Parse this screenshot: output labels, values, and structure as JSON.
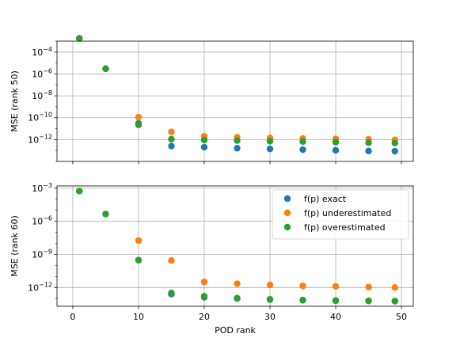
{
  "chart_data": [
    {
      "type": "scatter",
      "xlabel": "",
      "ylabel": "MSE (rank 50)",
      "yscale": "log",
      "xlim": [
        -2.4,
        51.8
      ],
      "ylim": [
        1e-14,
        0.001
      ],
      "grid": true,
      "legend": null,
      "x_ticks": [
        0,
        10,
        20,
        30,
        40,
        50
      ],
      "y_ticks": [
        {
          "value": 1e-12,
          "base": "10",
          "exp": "−12"
        },
        {
          "value": 1e-10,
          "base": "10",
          "exp": "−10"
        },
        {
          "value": 1e-08,
          "base": "10",
          "exp": "−8"
        },
        {
          "value": 1e-06,
          "base": "10",
          "exp": "−6"
        },
        {
          "value": 0.0001,
          "base": "10",
          "exp": "−4"
        }
      ],
      "series": [
        {
          "name": "f(p) exact",
          "color": "#1f77b4",
          "x": [
            1,
            5,
            10,
            15,
            20,
            25,
            30,
            35,
            40,
            45,
            49
          ],
          "y": [
            0.0018,
            3e-06,
            3e-11,
            2.5e-13,
            2e-13,
            1.6e-13,
            1.4e-13,
            1.2e-13,
            1.05e-13,
            9e-14,
            8.5e-14
          ]
        },
        {
          "name": "f(p) underestimated",
          "color": "#ff7f0e",
          "x": [
            1,
            5,
            10,
            15,
            20,
            25,
            30,
            35,
            40,
            45,
            49
          ],
          "y": [
            0.0018,
            3e-06,
            1.1e-10,
            5e-12,
            2e-12,
            1.6e-12,
            1.4e-12,
            1.25e-12,
            1.15e-12,
            1.05e-12,
            9.5e-13
          ]
        },
        {
          "name": "f(p) overestimated",
          "color": "#2ca02c",
          "x": [
            1,
            5,
            10,
            15,
            20,
            25,
            30,
            35,
            40,
            45,
            49
          ],
          "y": [
            0.0018,
            3e-06,
            2.2e-11,
            1.1e-12,
            9e-13,
            8e-13,
            7e-13,
            6.5e-13,
            5.8e-13,
            5.2e-13,
            4.8e-13
          ]
        }
      ]
    },
    {
      "type": "scatter",
      "xlabel": "POD rank",
      "ylabel": "MSE (rank 60)",
      "yscale": "log",
      "xlim": [
        -2.4,
        51.8
      ],
      "ylim": [
        2e-14,
        0.0016
      ],
      "grid": true,
      "legend": "top-right",
      "x_ticks": [
        0,
        10,
        20,
        30,
        40,
        50
      ],
      "y_ticks": [
        {
          "value": 1e-12,
          "base": "10",
          "exp": "−12"
        },
        {
          "value": 1e-09,
          "base": "10",
          "exp": "−9"
        },
        {
          "value": 1e-06,
          "base": "10",
          "exp": "−6"
        },
        {
          "value": 0.001,
          "base": "10",
          "exp": "−3"
        }
      ],
      "series": [
        {
          "name": "f(p) exact",
          "color": "#1f77b4",
          "x": [
            1,
            5,
            10,
            15,
            20,
            25,
            30,
            35,
            40,
            45,
            49
          ],
          "y": [
            0.00055,
            4.5e-06,
            3e-10,
            2.5e-13,
            1.3e-13,
            1e-13,
            8e-14,
            7e-14,
            6.3e-14,
            6e-14,
            5.7e-14
          ]
        },
        {
          "name": "f(p) underestimated",
          "color": "#ff7f0e",
          "x": [
            1,
            5,
            10,
            15,
            20,
            25,
            30,
            35,
            40,
            45,
            49
          ],
          "y": [
            0.00055,
            4.5e-06,
            1.8e-08,
            2.8e-10,
            3.2e-12,
            2.2e-12,
            1.7e-12,
            1.4e-12,
            1.25e-12,
            1.1e-12,
            1e-12
          ]
        },
        {
          "name": "f(p) overestimated",
          "color": "#2ca02c",
          "x": [
            1,
            5,
            10,
            15,
            20,
            25,
            30,
            35,
            40,
            45,
            49
          ],
          "y": [
            0.00055,
            4.5e-06,
            3e-10,
            3.2e-13,
            1.6e-13,
            1.1e-13,
            8.6e-14,
            7.3e-14,
            6.6e-14,
            6.2e-14,
            5.9e-14
          ]
        }
      ]
    }
  ]
}
